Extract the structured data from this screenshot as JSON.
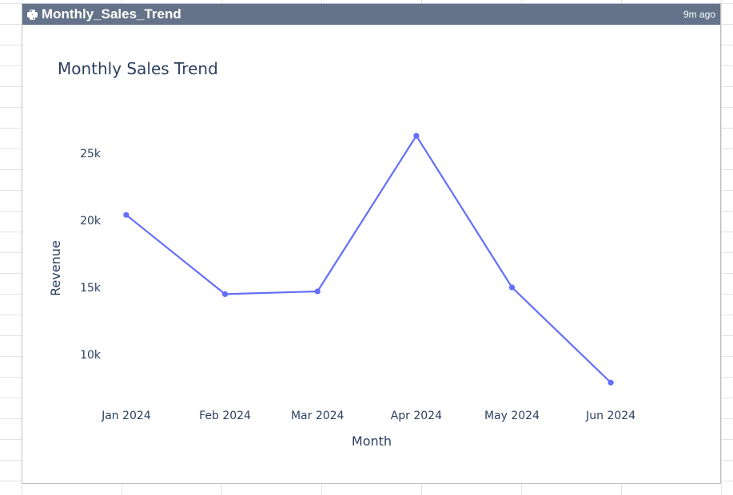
{
  "window": {
    "title": "Monthly_Sales_Trend",
    "timestamp": "9m ago",
    "icon": "python-icon",
    "header_color": "#647389"
  },
  "chart_data": {
    "type": "line",
    "title": "Monthly Sales Trend",
    "xlabel": "Month",
    "ylabel": "Revenue",
    "categories": [
      "Jan 2024",
      "Feb 2024",
      "Mar 2024",
      "Apr 2024",
      "May 2024",
      "Jun 2024"
    ],
    "x_dates": [
      "2024-01-01",
      "2024-02-01",
      "2024-03-01",
      "2024-04-01",
      "2024-05-01",
      "2024-06-01"
    ],
    "series": [
      {
        "values": [
          20400,
          14500,
          14700,
          26300,
          15000,
          7900
        ],
        "color": "#636efa"
      }
    ],
    "yticks": [
      10000,
      15000,
      20000,
      25000
    ],
    "ytick_labels": [
      "10k",
      "15k",
      "20k",
      "25k"
    ],
    "ylim": [
      7200,
      27200
    ],
    "xlim": [
      "2023-12-24",
      "2024-06-12"
    ],
    "grid": false,
    "legend": false
  }
}
